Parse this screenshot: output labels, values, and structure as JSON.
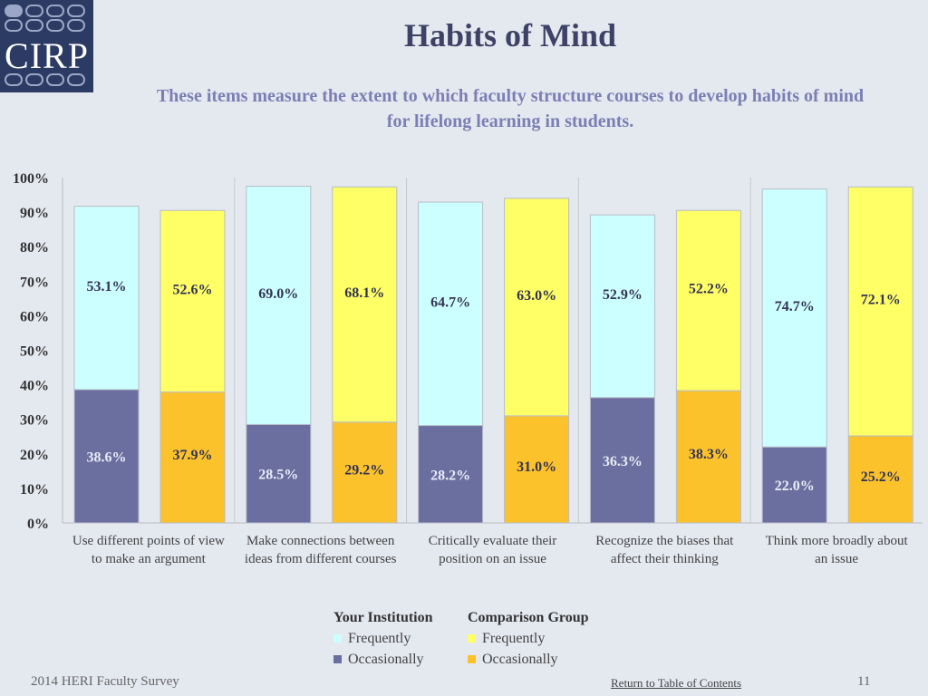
{
  "logo": {
    "text": "CIRP"
  },
  "header": {
    "title": "Habits of Mind",
    "subtitle_line1": "These items measure the extent to which faculty structure courses to develop habits of mind",
    "subtitle_line2": "for lifelong learning in students."
  },
  "colors": {
    "inst_frequently": "#ccffff",
    "inst_occasionally": "#6b6f9f",
    "comp_frequently": "#ffff66",
    "comp_occasionally": "#fcc22c",
    "label_dark": "#333355",
    "label_light": "#e8ecf8"
  },
  "chart_data": {
    "type": "bar",
    "stacked": true,
    "ylim": [
      0,
      100
    ],
    "y_ticks": [
      "0%",
      "10%",
      "20%",
      "30%",
      "40%",
      "50%",
      "60%",
      "70%",
      "80%",
      "90%",
      "100%"
    ],
    "categories": [
      [
        "Use different points of view",
        "to make an argument"
      ],
      [
        "Make connections between",
        "ideas from different courses"
      ],
      [
        "Critically evaluate their",
        "position on an issue"
      ],
      [
        "Recognize the biases that",
        "affect their thinking"
      ],
      [
        "Think more broadly about",
        "an issue"
      ]
    ],
    "series": [
      {
        "group": "Your Institution",
        "name": "Occasionally",
        "values": [
          38.6,
          28.5,
          28.2,
          36.3,
          22.0
        ],
        "labels": [
          "38.6%",
          "28.5%",
          "28.2%",
          "36.3%",
          "22.0%"
        ]
      },
      {
        "group": "Your Institution",
        "name": "Frequently",
        "values": [
          53.1,
          69.0,
          64.7,
          52.9,
          74.7
        ],
        "labels": [
          "53.1%",
          "69.0%",
          "64.7%",
          "52.9%",
          "74.7%"
        ]
      },
      {
        "group": "Comparison Group",
        "name": "Occasionally",
        "values": [
          37.9,
          29.2,
          31.0,
          38.3,
          25.2
        ],
        "labels": [
          "37.9%",
          "29.2%",
          "31.0%",
          "38.3%",
          "25.2%"
        ]
      },
      {
        "group": "Comparison Group",
        "name": "Frequently",
        "values": [
          52.6,
          68.1,
          63.0,
          52.2,
          72.1
        ],
        "labels": [
          "52.6%",
          "68.1%",
          "63.0%",
          "52.2%",
          "72.1%"
        ]
      }
    ],
    "grid": false,
    "legend_position": "bottom-center"
  },
  "legend": {
    "institution_title": "Your Institution",
    "comparison_title": "Comparison Group",
    "frequently": "Frequently",
    "occasionally": "Occasionally"
  },
  "footer": {
    "survey": "2014 HERI Faculty Survey",
    "toc_link": "Return to Table of Contents",
    "page": "11"
  }
}
